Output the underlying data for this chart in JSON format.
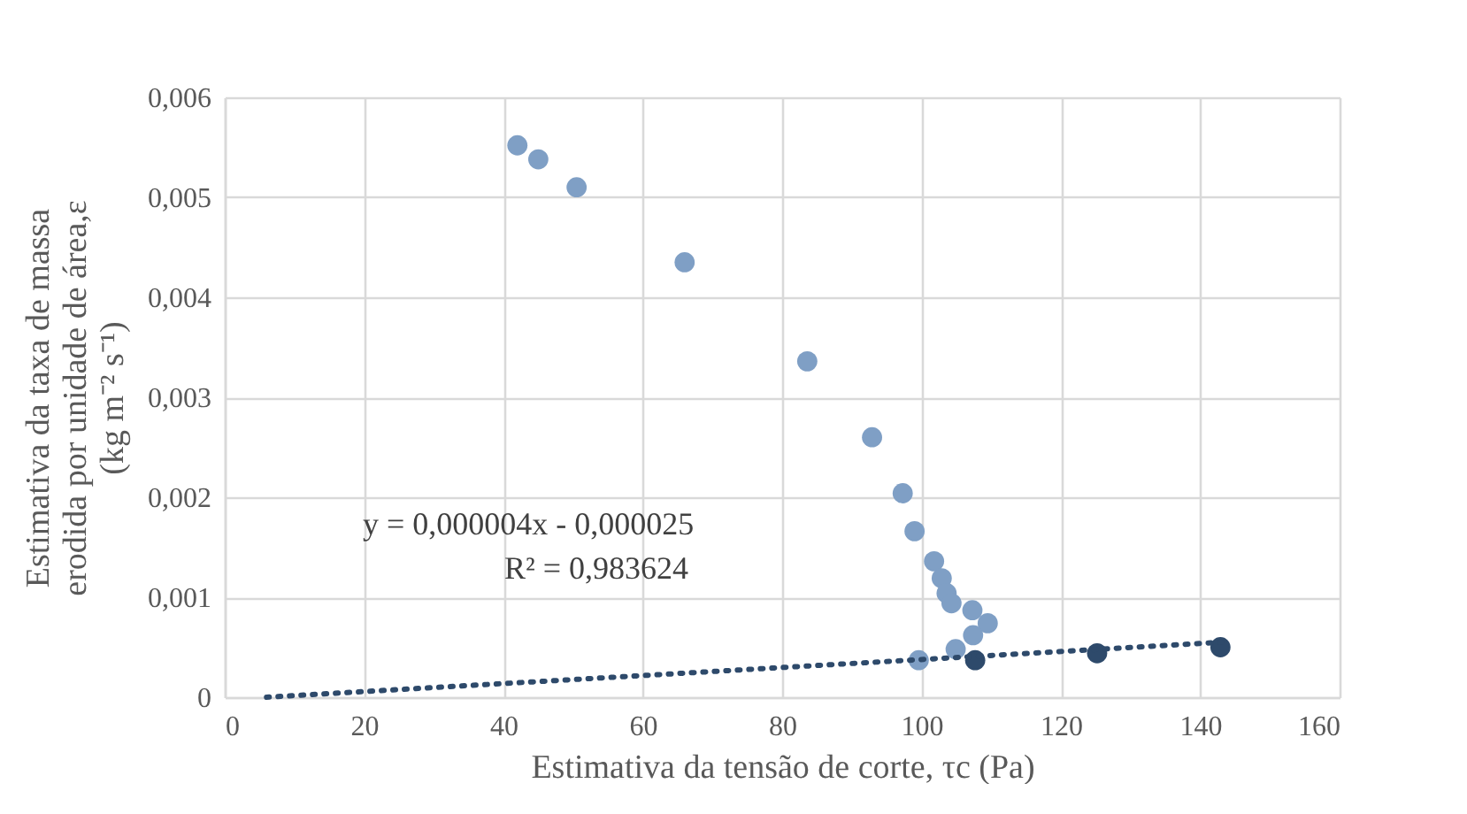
{
  "chart_data": {
    "type": "scatter",
    "xlabel": "Estimativa da tensão de corte, τc (Pa)",
    "ylabel": "Estimativa da taxa de massa erodida por unidade de área,ε (kg m⁻² s⁻¹)",
    "xlim": [
      0,
      160
    ],
    "xticks": [
      0,
      20,
      40,
      60,
      80,
      100,
      120,
      140,
      160
    ],
    "ylim": [
      0,
      0.006
    ],
    "yticks": [
      0,
      {
        "value": 0.001,
        "label": "0,001"
      },
      {
        "value": 0.002,
        "label": "0,002"
      },
      {
        "value": 0.003,
        "label": "0,003"
      },
      {
        "value": 0.004,
        "label": "0,004"
      },
      {
        "value": 0.005,
        "label": "0,005"
      },
      {
        "value": 0.006,
        "label": "0,006"
      }
    ],
    "grid": true,
    "marker": "circle",
    "series": [
      {
        "color": "#7f9fc5",
        "x": [
          42,
          45,
          50.5,
          66,
          83.6,
          92.9,
          97.3,
          99,
          101.8,
          102.9,
          103.6,
          104.3,
          107.3,
          109.5,
          107.4,
          104.9,
          99.6
        ],
        "values": [
          0.00552,
          0.00538,
          0.0051,
          0.00435,
          0.00336,
          0.0026,
          0.00204,
          0.00166,
          0.00136,
          0.00119,
          0.00104,
          0.00094,
          0.00087,
          0.00074,
          0.00062,
          0.00048,
          0.00037
        ]
      },
      {
        "color": "#2e4a6b",
        "x": [
          107.7,
          125.2,
          142.9
        ],
        "values": [
          0.00037,
          0.00044,
          0.0005
        ]
      },
      {
        "type": "line",
        "color": "#2e4a6b",
        "line_style": "dotted",
        "marker": "none",
        "x": [
          6,
          143
        ],
        "values": [
          0,
          0.00055
        ]
      }
    ],
    "annotations": [
      "y = 0,000004x - 0,000025",
      "R² = 0,983624"
    ]
  }
}
